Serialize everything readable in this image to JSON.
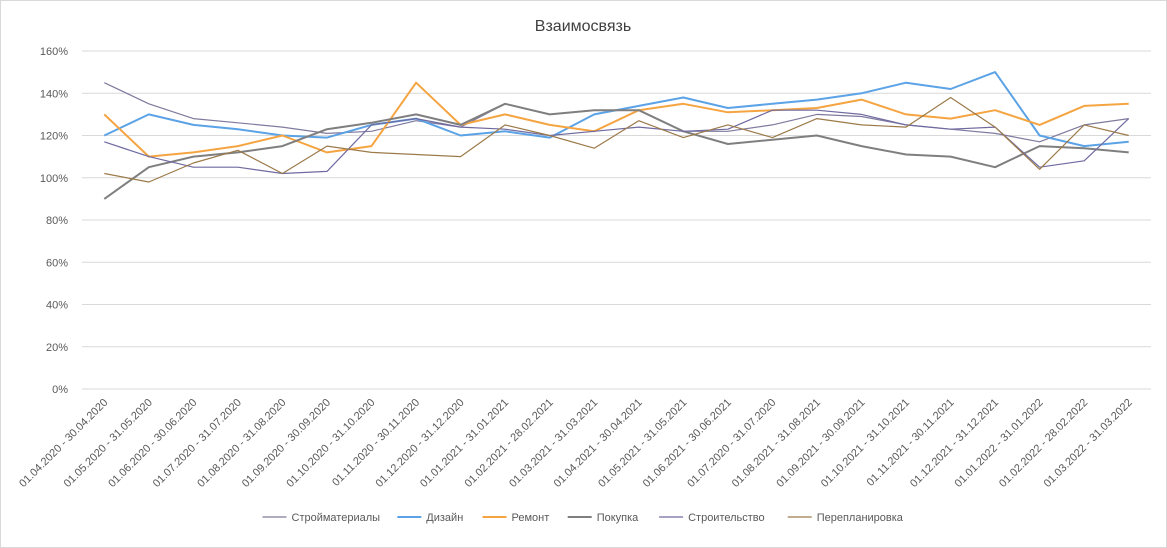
{
  "chart_data": {
    "type": "line",
    "title": "Взаимосвязь",
    "xlabel": "",
    "ylabel": "",
    "ylim": [
      0,
      1.6
    ],
    "y_tick_labels": [
      "0%",
      "20%",
      "40%",
      "60%",
      "80%",
      "100%",
      "120%",
      "140%",
      "160%"
    ],
    "y_ticks": [
      0,
      0.2,
      0.4,
      0.6,
      0.8,
      1.0,
      1.2,
      1.4,
      1.6
    ],
    "grid": true,
    "legend_position": "bottom",
    "categories": [
      "01.04.2020 - 30.04.2020",
      "01.05.2020 - 31.05.2020",
      "01.06.2020 - 30.06.2020",
      "01.07.2020 - 31.07.2020",
      "01.08.2020 - 31.08.2020",
      "01.09.2020 - 30.09.2020",
      "01.10.2020 - 31.10.2020",
      "01.11.2020 - 30.11.2020",
      "01.12.2020 - 31.12.2020",
      "01.01.2021 - 31.01.2021",
      "01.02.2021 - 28.02.2021",
      "01.03.2021 - 31.03.2021",
      "01.04.2021 - 30.04.2021",
      "01.05.2021 - 31.05.2021",
      "01.06.2021 - 30.06.2021",
      "01.07.2020 - 31.07.2020",
      "01.08.2021 - 31.08.2021",
      "01.09.2021 - 30.09.2021",
      "01.10.2021 - 31.10.2021",
      "01.11.2021 - 30.11.2021",
      "01.12.2021 - 31.12.2021",
      "01.01.2022 - 31.01.2022",
      "01.02.2022 - 28.02.2022",
      "01.03.2022 - 31.03.2022"
    ],
    "series": [
      {
        "name": "Стройматериалы",
        "color": "#7f7a9e",
        "width": 1.2,
        "values": [
          1.45,
          1.35,
          1.28,
          1.26,
          1.24,
          1.21,
          1.22,
          1.27,
          1.24,
          1.35,
          1.3,
          1.32,
          1.32,
          1.22,
          1.22,
          1.25,
          1.3,
          1.29,
          1.25,
          1.23,
          1.21,
          1.17,
          1.25,
          1.28
        ]
      },
      {
        "name": "Дизайн",
        "color": "#5ba3e6",
        "width": 2,
        "values": [
          1.2,
          1.3,
          1.25,
          1.23,
          1.2,
          1.19,
          1.25,
          1.28,
          1.2,
          1.22,
          1.19,
          1.3,
          1.34,
          1.38,
          1.33,
          1.35,
          1.37,
          1.4,
          1.45,
          1.42,
          1.5,
          1.2,
          1.15,
          1.17
        ]
      },
      {
        "name": "Ремонт",
        "color": "#f5a442",
        "width": 2,
        "values": [
          1.3,
          1.1,
          1.12,
          1.15,
          1.2,
          1.12,
          1.15,
          1.45,
          1.25,
          1.3,
          1.25,
          1.22,
          1.32,
          1.35,
          1.31,
          1.32,
          1.33,
          1.37,
          1.3,
          1.28,
          1.32,
          1.25,
          1.34,
          1.35
        ]
      },
      {
        "name": "Покупка",
        "color": "#7f7f7f",
        "width": 2,
        "values": [
          0.9,
          1.05,
          1.1,
          1.12,
          1.15,
          1.23,
          1.26,
          1.3,
          1.25,
          1.35,
          1.3,
          1.32,
          1.32,
          1.22,
          1.16,
          1.18,
          1.2,
          1.15,
          1.11,
          1.1,
          1.05,
          1.15,
          1.14,
          1.12
        ]
      },
      {
        "name": "Строительство",
        "color": "#6f6aa0",
        "width": 1.2,
        "values": [
          1.17,
          1.1,
          1.05,
          1.05,
          1.02,
          1.03,
          1.25,
          1.28,
          1.24,
          1.23,
          1.2,
          1.22,
          1.24,
          1.22,
          1.23,
          1.32,
          1.32,
          1.3,
          1.25,
          1.23,
          1.24,
          1.05,
          1.08,
          1.28
        ]
      },
      {
        "name": "Перепланировка",
        "color": "#9c7a4a",
        "width": 1.2,
        "values": [
          1.02,
          0.98,
          1.07,
          1.13,
          1.02,
          1.15,
          1.12,
          1.11,
          1.1,
          1.25,
          1.2,
          1.14,
          1.27,
          1.19,
          1.25,
          1.19,
          1.28,
          1.25,
          1.24,
          1.38,
          1.24,
          1.04,
          1.25,
          1.2
        ]
      }
    ]
  }
}
